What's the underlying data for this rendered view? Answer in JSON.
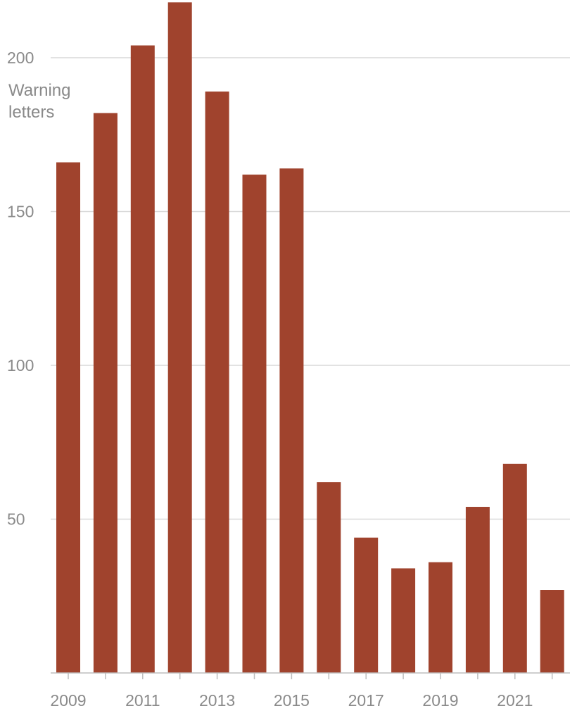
{
  "chart_data": {
    "type": "bar",
    "title": "",
    "xlabel": "",
    "ylabel": [
      "Warning",
      "letters"
    ],
    "categories": [
      2009,
      2010,
      2011,
      2012,
      2013,
      2014,
      2015,
      2016,
      2017,
      2018,
      2019,
      2020,
      2021,
      2022
    ],
    "values": [
      166,
      182,
      204,
      218,
      189,
      162,
      164,
      62,
      44,
      34,
      36,
      54,
      68,
      27
    ],
    "ylim": [
      0,
      218
    ],
    "yticks": [
      50,
      100,
      150,
      200
    ],
    "xtick_labels": [
      "2009",
      "2011",
      "2013",
      "2015",
      "2017",
      "2019",
      "2021"
    ],
    "grid": true,
    "colors": {
      "bar": "#a0432d",
      "grid": "#d9d9d9",
      "text": "#8a8a8a"
    }
  }
}
